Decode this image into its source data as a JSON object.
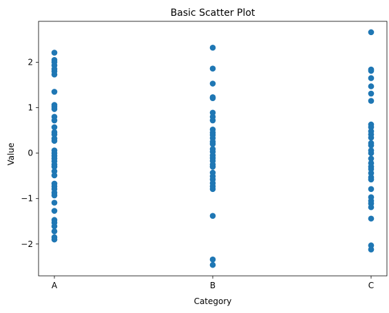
{
  "chart_data": {
    "type": "scatter",
    "title": "Basic Scatter Plot",
    "xlabel": "Category",
    "ylabel": "Value",
    "categories": [
      "A",
      "B",
      "C"
    ],
    "ylim": [
      -2.7,
      2.9
    ],
    "yticks": [
      -2,
      -1,
      0,
      1,
      2
    ],
    "grid": false,
    "color": "#1f77b4",
    "series": [
      {
        "category": "A",
        "values": [
          2.21,
          2.05,
          2.0,
          1.93,
          1.85,
          1.8,
          1.73,
          1.35,
          1.06,
          1.02,
          0.97,
          0.8,
          0.72,
          0.57,
          0.46,
          0.41,
          0.32,
          0.27,
          0.06,
          0.0,
          -0.06,
          -0.12,
          -0.18,
          -0.25,
          -0.3,
          -0.4,
          -0.49,
          -0.67,
          -0.73,
          -0.79,
          -0.87,
          -0.93,
          -1.09,
          -1.27,
          -1.47,
          -1.53,
          -1.61,
          -1.72,
          -1.85,
          -1.9
        ]
      },
      {
        "category": "B",
        "values": [
          2.32,
          1.86,
          1.53,
          1.23,
          1.21,
          0.89,
          0.8,
          0.72,
          0.52,
          0.45,
          0.4,
          0.33,
          0.25,
          0.2,
          0.09,
          0.03,
          -0.05,
          -0.11,
          -0.17,
          -0.25,
          -0.3,
          -0.43,
          -0.51,
          -0.58,
          -0.66,
          -0.73,
          -0.79,
          -1.38,
          -2.34,
          -2.46
        ]
      },
      {
        "category": "C",
        "values": [
          2.66,
          1.84,
          1.81,
          1.65,
          1.47,
          1.31,
          1.15,
          0.63,
          0.57,
          0.48,
          0.41,
          0.34,
          0.22,
          0.17,
          0.06,
          0.0,
          -0.12,
          -0.22,
          -0.3,
          -0.35,
          -0.44,
          -0.53,
          -0.58,
          -0.79,
          -0.97,
          -1.05,
          -1.11,
          -1.19,
          -1.44,
          -2.03,
          -2.12
        ]
      }
    ]
  }
}
